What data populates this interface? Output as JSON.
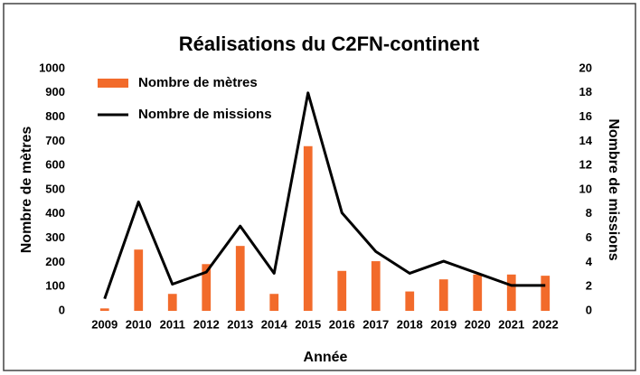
{
  "chart_data": {
    "type": "bar",
    "title": "Réalisations du C2FN-continent",
    "xlabel": "Année",
    "ylabel": "Nombre de mètres",
    "y2label": "Nombre de missions",
    "categories": [
      "2009",
      "2010",
      "2011",
      "2012",
      "2013",
      "2014",
      "2015",
      "2016",
      "2017",
      "2018",
      "2019",
      "2020",
      "2021",
      "2022"
    ],
    "series": [
      {
        "name": "Nombre de mètres",
        "color": "#f26b2b",
        "values": [
          10,
          253,
          70,
          193,
          268,
          70,
          680,
          165,
          205,
          80,
          130,
          150,
          150,
          145
        ]
      },
      {
        "name": "Nombre de missions",
        "color": "#000000",
        "type": "line",
        "axis": "y2",
        "values": [
          1,
          9,
          2.2,
          3.2,
          7,
          3.1,
          18,
          8.1,
          4.9,
          3.1,
          4.1,
          3.1,
          2.1,
          2.1
        ]
      }
    ],
    "ylim": [
      0,
      1000
    ],
    "yticks": [
      0,
      100,
      200,
      300,
      400,
      500,
      600,
      700,
      800,
      900,
      1000
    ],
    "y2lim": [
      0,
      20
    ],
    "y2ticks": [
      0,
      2,
      4,
      6,
      8,
      10,
      12,
      14,
      16,
      18,
      20
    ],
    "legend": "upper left"
  }
}
